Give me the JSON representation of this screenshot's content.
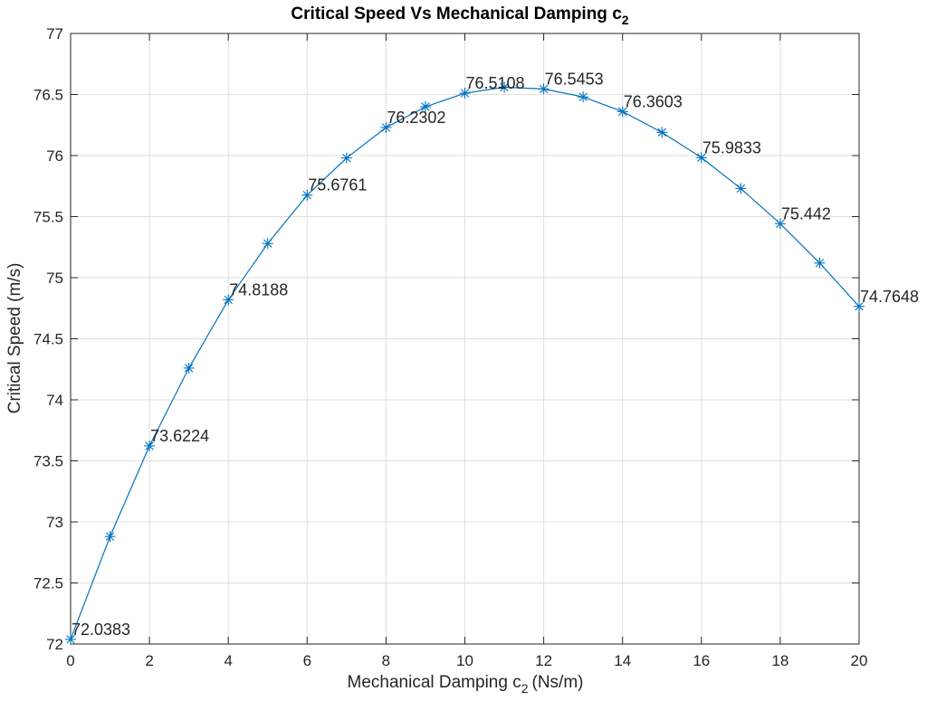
{
  "chart_data": {
    "type": "line",
    "title": "Critical Speed Vs Mechanical Damping c",
    "title_subscript": "2",
    "xlabel": "Mechanical Damping c",
    "xlabel_subscript": "2",
    "xlabel_unit": "(Ns/m)",
    "ylabel": "Critical Speed (m/s)",
    "xlim": [
      0,
      20
    ],
    "ylim": [
      72,
      77
    ],
    "x_ticks": [
      0,
      2,
      4,
      6,
      8,
      10,
      12,
      14,
      16,
      18,
      20
    ],
    "y_ticks": [
      72,
      72.5,
      73,
      73.5,
      74,
      74.5,
      75,
      75.5,
      76,
      76.5,
      77
    ],
    "x_tick_labels": [
      "0",
      "2",
      "4",
      "6",
      "8",
      "10",
      "12",
      "14",
      "16",
      "18",
      "20"
    ],
    "y_tick_labels": [
      "72",
      "72.5",
      "73",
      "73.5",
      "74",
      "74.5",
      "75",
      "75.5",
      "76",
      "76.5",
      "77"
    ],
    "grid": true,
    "marker": "asterisk",
    "series": [
      {
        "color": "#0072BD",
        "x": [
          0,
          1,
          2,
          3,
          4,
          5,
          6,
          7,
          8,
          9,
          10,
          11,
          12,
          13,
          14,
          15,
          16,
          17,
          18,
          19,
          20
        ],
        "y": [
          72.0383,
          72.88,
          73.6224,
          74.26,
          74.8188,
          75.28,
          75.6761,
          75.98,
          76.2302,
          76.4,
          76.5108,
          76.56,
          76.5453,
          76.48,
          76.3603,
          76.19,
          75.9833,
          75.73,
          75.442,
          75.12,
          74.7648
        ]
      }
    ],
    "annotations": [
      {
        "x": 0,
        "y": 72.0383,
        "text": "72.0383"
      },
      {
        "x": 2,
        "y": 73.6224,
        "text": "73.6224"
      },
      {
        "x": 4,
        "y": 74.8188,
        "text": "74.8188"
      },
      {
        "x": 6,
        "y": 75.6761,
        "text": "75.6761"
      },
      {
        "x": 8,
        "y": 76.2302,
        "text": "76.2302"
      },
      {
        "x": 10,
        "y": 76.5108,
        "text": "76.5108"
      },
      {
        "x": 12,
        "y": 76.5453,
        "text": "76.5453"
      },
      {
        "x": 14,
        "y": 76.3603,
        "text": "76.3603"
      },
      {
        "x": 16,
        "y": 75.9833,
        "text": "75.9833"
      },
      {
        "x": 18,
        "y": 75.442,
        "text": "75.442"
      },
      {
        "x": 20,
        "y": 74.7648,
        "text": "74.7648"
      }
    ]
  }
}
